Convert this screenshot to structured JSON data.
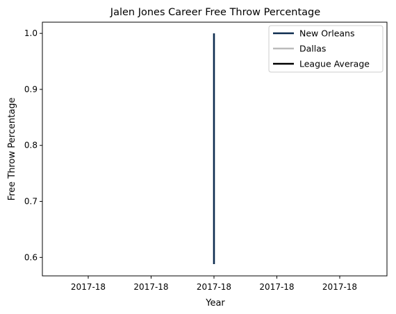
{
  "chart_data": {
    "type": "line",
    "title": "Jalen Jones Career Free Throw Percentage",
    "xlabel": "Year",
    "ylabel": "Free Throw Percentage",
    "x_tick_labels": [
      "2017-18",
      "2017-18",
      "2017-18",
      "2017-18",
      "2017-18"
    ],
    "x_categories": [
      "2017-18"
    ],
    "yticks": [
      0.6,
      0.7,
      0.8,
      0.9,
      1.0
    ],
    "ylim": [
      0.567,
      1.02
    ],
    "grid": false,
    "legend_position": "top-right",
    "series": [
      {
        "name": "New Orleans",
        "color": "#0c2b4e",
        "x": [
          "2017-18",
          "2017-18"
        ],
        "y": [
          0.588,
          1.0
        ]
      },
      {
        "name": "Dallas",
        "color": "#bbbbbb",
        "x": [],
        "y": []
      },
      {
        "name": "League Average",
        "color": "#000000",
        "x": [],
        "y": []
      }
    ]
  }
}
